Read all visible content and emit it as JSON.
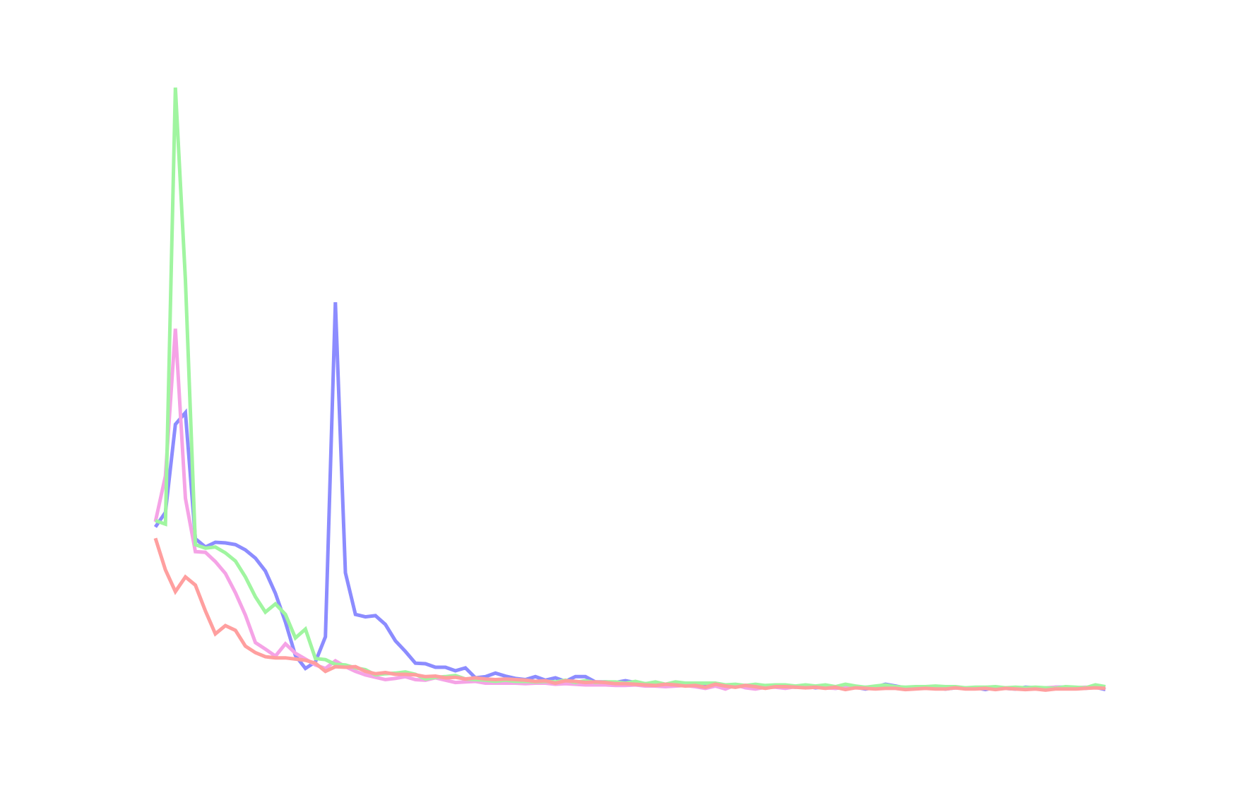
{
  "chart_data": {
    "type": "line",
    "title": "",
    "xlabel": "",
    "ylabel": "",
    "grid": false,
    "legend": "none",
    "x": [
      0,
      1,
      2,
      3,
      4,
      5,
      6,
      7,
      8,
      9,
      10,
      11,
      12,
      13,
      14,
      15,
      16,
      17,
      18,
      19,
      20,
      21,
      22,
      23,
      24,
      25,
      26,
      27,
      28,
      29,
      30,
      31,
      32,
      33,
      34,
      35,
      36,
      37,
      38,
      39,
      40,
      41,
      42,
      43,
      44,
      45,
      46,
      47,
      48,
      49,
      50,
      51,
      52,
      53,
      54,
      55,
      56,
      57,
      58,
      59,
      60,
      61,
      62,
      63,
      64,
      65,
      66,
      67,
      68,
      69,
      70,
      71,
      72,
      73,
      74,
      75,
      76,
      77,
      78,
      79,
      80,
      81,
      82,
      83,
      84,
      85,
      86,
      87,
      88,
      89,
      90,
      91,
      92,
      93,
      94,
      95
    ],
    "xlim": [
      0,
      95
    ],
    "ylim": [
      0,
      100
    ],
    "series": [
      {
        "color": "#8c8cff",
        "values": [
          25.1,
          27.6,
          42.6,
          44.6,
          23.1,
          21.7,
          22.5,
          22.4,
          22.1,
          21.2,
          19.8,
          17.6,
          13.8,
          8.9,
          3.2,
          1.0,
          2.1,
          6.4,
          63.4,
          17.3,
          10.2,
          9.8,
          10.0,
          8.5,
          5.7,
          3.9,
          1.9,
          1.8,
          1.2,
          1.2,
          0.6,
          1.1,
          -0.6,
          -0.4,
          0.2,
          -0.3,
          -0.7,
          -0.9,
          -0.4,
          -1.0,
          -0.6,
          -1.2,
          -0.4,
          -0.4,
          -1.3,
          -1.3,
          -1.4,
          -1.1,
          -1.4,
          -1.6,
          -1.6,
          -1.7,
          -1.6,
          -1.8,
          -1.9,
          -1.8,
          -1.8,
          -2.0,
          -2.0,
          -1.9,
          -2.0,
          -2.2,
          -1.9,
          -2.1,
          -2.2,
          -2.0,
          -2.3,
          -2.1,
          -2.4,
          -2.2,
          -2.2,
          -2.5,
          -2.2,
          -1.7,
          -2.0,
          -2.3,
          -2.3,
          -2.1,
          -2.3,
          -2.5,
          -2.3,
          -2.4,
          -2.3,
          -2.6,
          -2.2,
          -2.4,
          -2.5,
          -2.2,
          -2.3,
          -2.5,
          -2.2,
          -2.2,
          -2.3,
          -2.4,
          -2.2,
          -2.6
        ]
      },
      {
        "color": "#f5a3e6",
        "values": [
          26.0,
          33.8,
          58.9,
          30.0,
          20.9,
          20.8,
          19.2,
          17.2,
          13.9,
          10.1,
          5.4,
          4.3,
          3.1,
          5.2,
          3.6,
          2.6,
          1.6,
          1.0,
          2.3,
          1.3,
          0.5,
          -0.1,
          -0.5,
          -0.9,
          -0.7,
          -0.4,
          -0.9,
          -1.0,
          -0.6,
          -1.0,
          -1.4,
          -1.3,
          -1.2,
          -1.5,
          -1.5,
          -1.5,
          -1.5,
          -1.6,
          -1.5,
          -1.5,
          -1.7,
          -1.6,
          -1.7,
          -1.8,
          -1.8,
          -1.8,
          -1.9,
          -1.9,
          -1.8,
          -2.0,
          -2.0,
          -2.1,
          -2.0,
          -1.9,
          -2.1,
          -2.4,
          -2.0,
          -2.5,
          -1.8,
          -2.3,
          -2.5,
          -2.2,
          -2.2,
          -2.4,
          -2.1,
          -2.3,
          -2.2,
          -2.3,
          -2.4,
          -2.1,
          -2.3,
          -2.2,
          -2.2,
          -2.2,
          -2.1,
          -2.3,
          -2.2,
          -2.1,
          -2.2,
          -2.2,
          -2.3,
          -2.3,
          -2.3,
          -2.4,
          -2.3,
          -2.3,
          -2.4,
          -2.4,
          -2.3,
          -2.3,
          -2.2,
          -2.3,
          -2.3,
          -2.2,
          -2.3,
          -2.3
        ]
      },
      {
        "color": "#a0f5a0",
        "values": [
          26.2,
          25.6,
          100.0,
          67.2,
          22.1,
          21.5,
          21.7,
          20.7,
          19.3,
          16.6,
          13.2,
          10.6,
          12.0,
          10.2,
          6.2,
          7.7,
          2.7,
          2.5,
          1.7,
          1.6,
          1.1,
          0.8,
          -0.1,
          0.1,
          0.2,
          0.4,
          0.0,
          -0.8,
          -0.5,
          -0.4,
          -0.2,
          -0.8,
          -0.9,
          -1.0,
          -1.2,
          -1.0,
          -1.2,
          -1.2,
          -1.3,
          -1.2,
          -1.3,
          -1.0,
          -1.4,
          -1.1,
          -1.4,
          -1.3,
          -1.3,
          -1.5,
          -1.2,
          -1.6,
          -1.3,
          -1.7,
          -1.3,
          -1.5,
          -1.5,
          -1.5,
          -1.5,
          -1.8,
          -1.7,
          -1.9,
          -1.7,
          -1.9,
          -1.8,
          -1.8,
          -2.0,
          -1.8,
          -2.0,
          -1.8,
          -2.1,
          -1.7,
          -2.0,
          -2.2,
          -2.0,
          -1.8,
          -2.1,
          -2.2,
          -2.1,
          -2.1,
          -2.0,
          -2.1,
          -2.1,
          -2.3,
          -2.2,
          -2.2,
          -2.1,
          -2.3,
          -2.2,
          -2.3,
          -2.2,
          -2.3,
          -2.4,
          -2.1,
          -2.2,
          -2.3,
          -1.8,
          -2.1
        ]
      },
      {
        "color": "#ff9f9f",
        "values": [
          23.2,
          17.8,
          14.1,
          16.6,
          15.2,
          10.8,
          6.9,
          8.3,
          7.5,
          4.8,
          3.7,
          3.0,
          2.8,
          2.8,
          2.6,
          2.4,
          1.9,
          0.5,
          1.3,
          1.2,
          1.3,
          0.5,
          0.1,
          0.3,
          0.0,
          0.0,
          -0.1,
          -0.4,
          -0.3,
          -0.6,
          -0.5,
          -0.8,
          -0.6,
          -0.8,
          -0.9,
          -0.8,
          -0.9,
          -1.0,
          -1.2,
          -1.1,
          -1.5,
          -1.1,
          -1.2,
          -1.4,
          -1.3,
          -1.4,
          -1.6,
          -1.6,
          -1.7,
          -1.8,
          -1.9,
          -1.7,
          -1.8,
          -2.0,
          -1.9,
          -2.2,
          -1.7,
          -2.0,
          -2.2,
          -1.9,
          -2.1,
          -2.4,
          -2.1,
          -2.1,
          -2.2,
          -2.3,
          -2.2,
          -2.4,
          -2.2,
          -2.6,
          -2.3,
          -2.4,
          -2.5,
          -2.4,
          -2.4,
          -2.6,
          -2.5,
          -2.4,
          -2.5,
          -2.5,
          -2.3,
          -2.5,
          -2.5,
          -2.4,
          -2.6,
          -2.4,
          -2.5,
          -2.6,
          -2.5,
          -2.7,
          -2.5,
          -2.5,
          -2.5,
          -2.4,
          -2.3,
          -2.4
        ]
      }
    ]
  }
}
